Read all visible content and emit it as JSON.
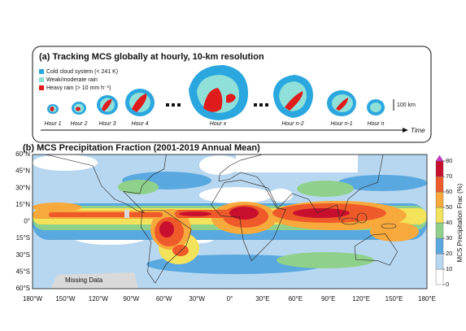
{
  "panel_a": {
    "title": "(a) Tracking MCS globally at hourly, 10-km resolution",
    "legend": [
      {
        "label": "Cold cloud system (< 241 K)",
        "color": "#2aa7df"
      },
      {
        "label": "Weak/moderate rain",
        "color": "#8ee0d8"
      },
      {
        "label": "Heavy rain (> 10 mm h⁻¹)",
        "color": "#e01b1b"
      }
    ],
    "hours": [
      "Hour 1",
      "Hour 2",
      "Hour 3",
      "Hour 4",
      "Hour x",
      "Hour n-2",
      "Hour n-1",
      "Hour n"
    ],
    "scale_label": "100 km",
    "time_label": "Time"
  },
  "panel_b": {
    "title": "(b) MCS Precipitation Fraction (2001-2019 Annual Mean)",
    "lat_labels": [
      "60°N",
      "45°N",
      "30°N",
      "15°N",
      "0°",
      "15°S",
      "30°S",
      "45°S",
      "60°S"
    ],
    "lon_labels": [
      "180°W",
      "150°W",
      "120°W",
      "90°W",
      "60°W",
      "30°W",
      "0°",
      "30°E",
      "60°E",
      "90°E",
      "120°E",
      "150°E",
      "180°E"
    ],
    "missing_label": "Missing Data",
    "colorbar": {
      "label": "MCS Precipitation Frac (%)",
      "lim": [
        0,
        80
      ],
      "ticks": [
        0,
        10,
        20,
        30,
        40,
        50,
        60,
        70,
        80
      ],
      "colors": [
        "#ffffff",
        "#b7d7f0",
        "#5aa8e0",
        "#8fd18a",
        "#f3e35a",
        "#f7a93c",
        "#ef5a2a",
        "#c8102e"
      ],
      "extend_color": "#cc33cc"
    }
  }
}
